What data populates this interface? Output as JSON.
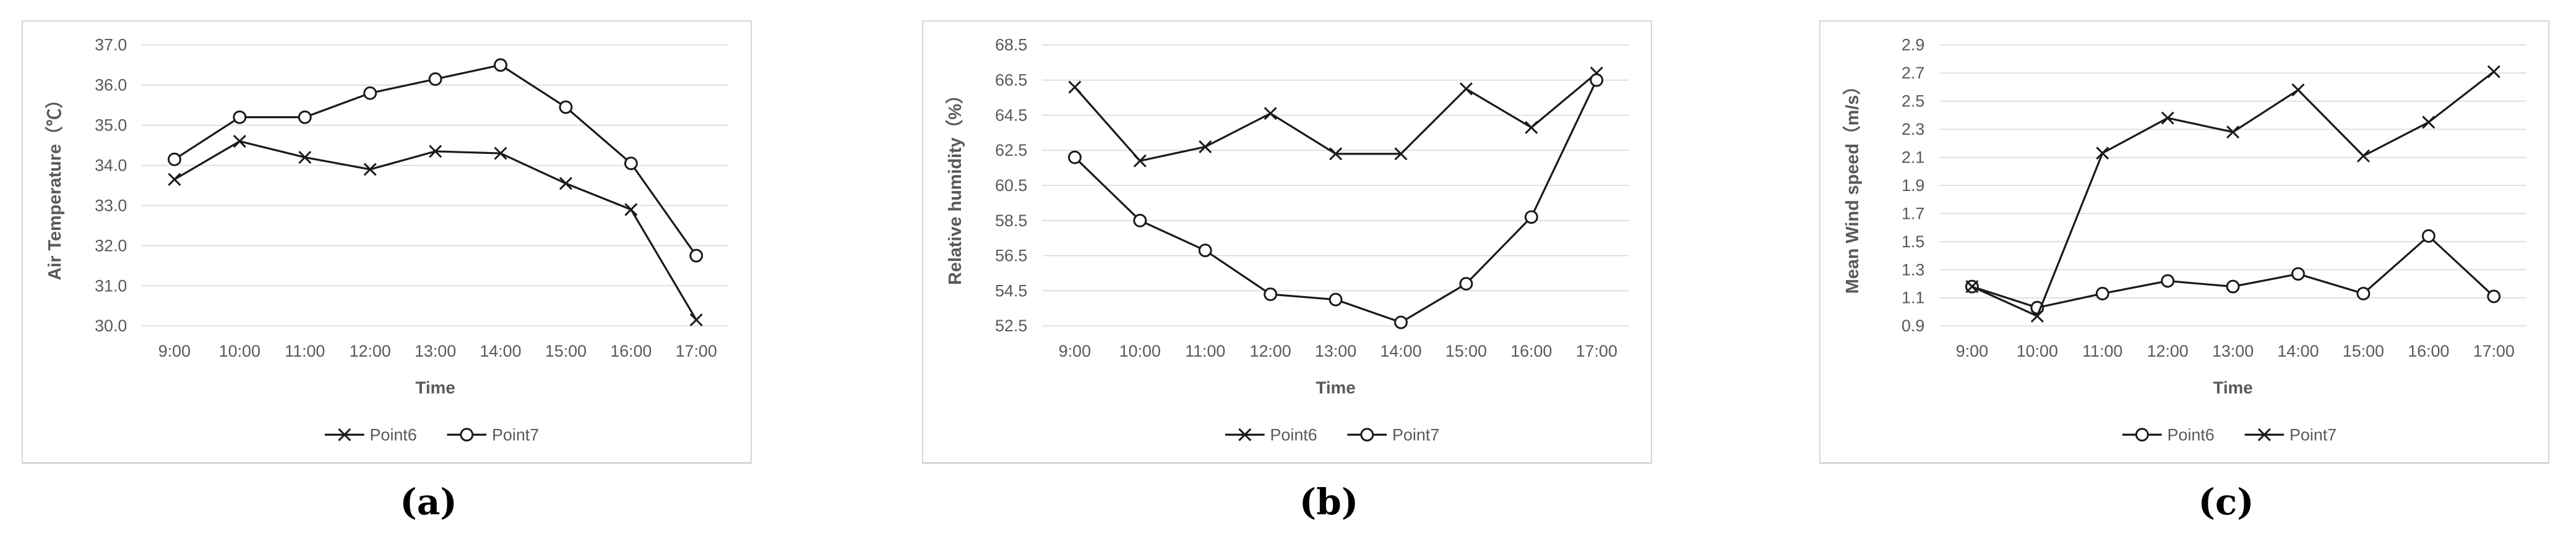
{
  "colors": {
    "text": "#595959",
    "grid": "#d9d9d9",
    "series_line": "#1a1a1a",
    "panel_border": "#d6d6d6",
    "background": "#ffffff"
  },
  "chart_data": [
    {
      "type": "line",
      "caption": "(a)",
      "ylabel": "Air Temperature（℃）",
      "xlabel": "Time",
      "categories": [
        "9:00",
        "10:00",
        "11:00",
        "12:00",
        "13:00",
        "14:00",
        "15:00",
        "16:00",
        "17:00"
      ],
      "ylim": [
        30.0,
        37.0
      ],
      "ytick_step": 1.0,
      "ytick_decimals": 1,
      "grid": true,
      "legend_position": "bottom",
      "series": [
        {
          "name": "Point6",
          "marker": "x",
          "values": [
            33.65,
            34.6,
            34.2,
            33.9,
            34.35,
            34.3,
            33.55,
            32.9,
            30.15
          ]
        },
        {
          "name": "Point7",
          "marker": "o",
          "values": [
            34.15,
            35.2,
            35.2,
            35.8,
            36.15,
            36.5,
            35.45,
            34.05,
            31.75
          ]
        }
      ]
    },
    {
      "type": "line",
      "caption": "(b)",
      "ylabel": "Relative humidity（%）",
      "xlabel": "Time",
      "categories": [
        "9:00",
        "10:00",
        "11:00",
        "12:00",
        "13:00",
        "14:00",
        "15:00",
        "16:00",
        "17:00"
      ],
      "ylim": [
        52.5,
        68.5
      ],
      "ytick_step": 2.0,
      "ytick_decimals": 1,
      "grid": true,
      "legend_position": "bottom",
      "series": [
        {
          "name": "Point6",
          "marker": "x",
          "values": [
            66.1,
            61.9,
            62.7,
            64.6,
            62.3,
            62.3,
            66.0,
            63.8,
            66.9
          ]
        },
        {
          "name": "Point7",
          "marker": "o",
          "values": [
            62.1,
            58.5,
            56.8,
            54.3,
            54.0,
            52.7,
            54.9,
            58.7,
            66.5
          ]
        }
      ]
    },
    {
      "type": "line",
      "caption": "(c)",
      "ylabel": "Mean Wind speed（m/s）",
      "xlabel": "Time",
      "categories": [
        "9:00",
        "10:00",
        "11:00",
        "12:00",
        "13:00",
        "14:00",
        "15:00",
        "16:00",
        "17:00"
      ],
      "ylim": [
        0.9,
        2.9
      ],
      "ytick_step": 0.2,
      "ytick_decimals": 1,
      "grid": true,
      "legend_position": "bottom",
      "series": [
        {
          "name": "Point6",
          "marker": "o",
          "values": [
            1.18,
            1.03,
            1.13,
            1.22,
            1.18,
            1.27,
            1.13,
            1.54,
            1.11
          ]
        },
        {
          "name": "Point7",
          "marker": "x",
          "values": [
            1.18,
            0.97,
            2.13,
            2.38,
            2.28,
            2.58,
            2.11,
            2.35,
            2.71
          ]
        }
      ]
    }
  ]
}
